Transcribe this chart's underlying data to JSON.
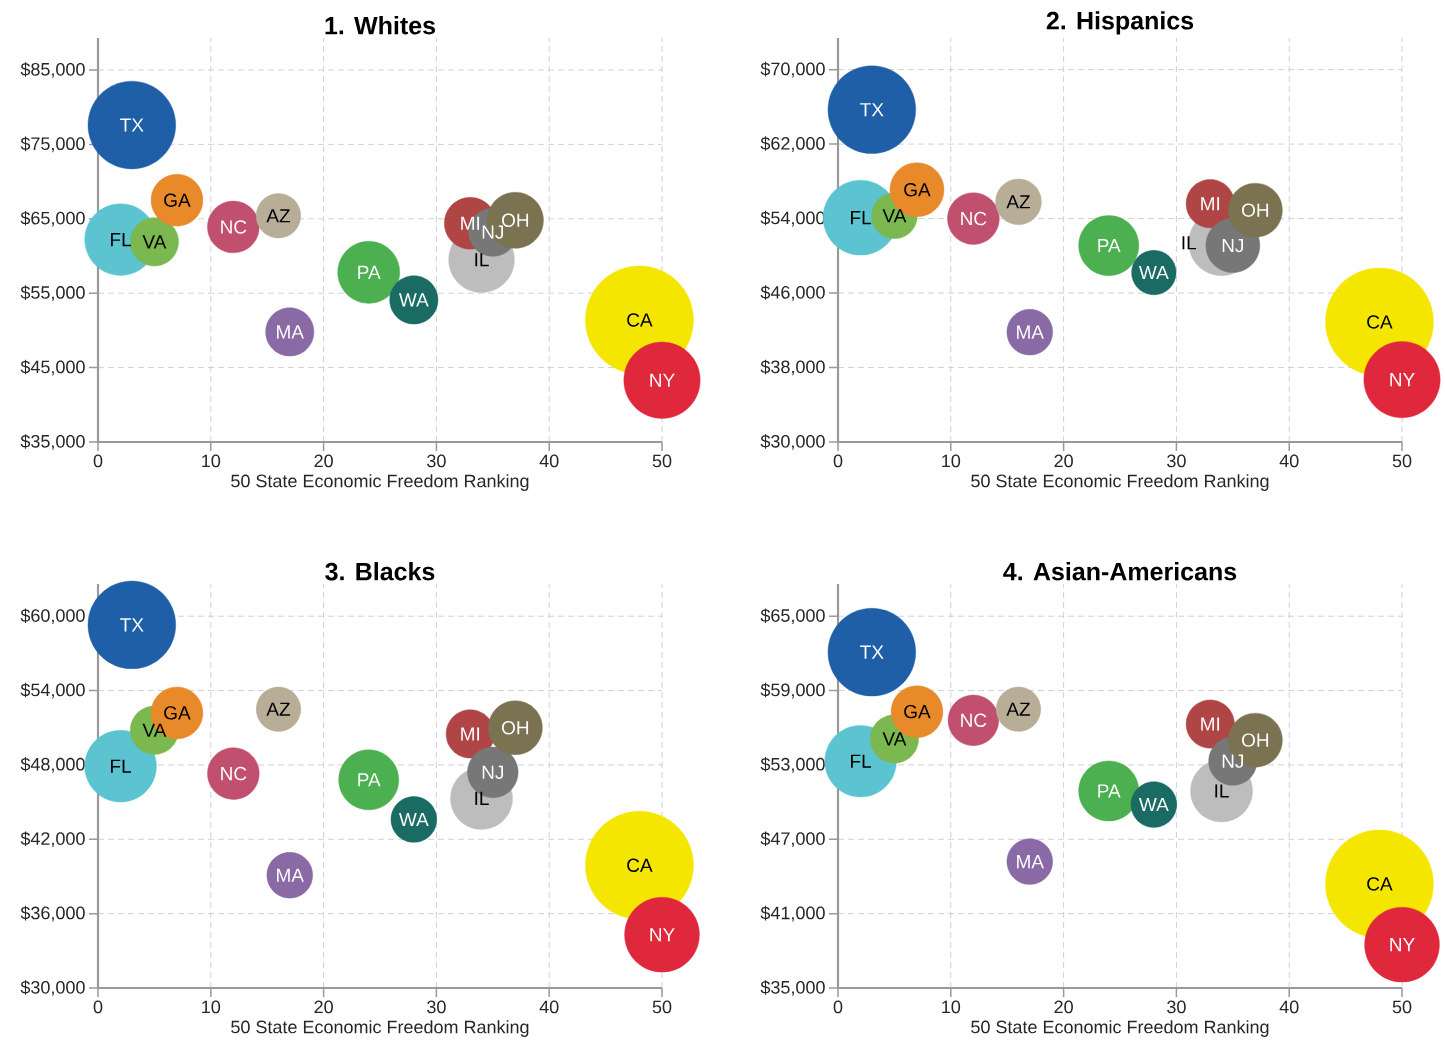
{
  "chart_data": [
    {
      "type": "bubble",
      "title": "1. Whites",
      "xlabel": "50 State Economic Freedom Ranking",
      "xlim": [
        0,
        50
      ],
      "ylim": [
        35000,
        89300
      ],
      "xticks": [
        0,
        10,
        20,
        30,
        40,
        50
      ],
      "yticks": [
        {
          "value": 35000,
          "label": "$35,000"
        },
        {
          "value": 45000,
          "label": "$45,000"
        },
        {
          "value": 55000,
          "label": "$55,000"
        },
        {
          "value": 65000,
          "label": "$65,000"
        },
        {
          "value": 75000,
          "label": "$75,000"
        },
        {
          "value": 85000,
          "label": "$85,000"
        }
      ],
      "grid": true,
      "marker": "circle",
      "x": [
        3,
        2,
        5,
        7,
        12,
        16,
        17,
        24,
        28,
        34,
        33,
        35,
        37,
        48,
        50
      ],
      "values": [
        77600,
        62200,
        61900,
        67500,
        63900,
        65400,
        49800,
        57800,
        54100,
        59500,
        64400,
        63200,
        64800,
        51400,
        43300
      ],
      "sizes": [
        0.66,
        0.44,
        0.2,
        0.23,
        0.23,
        0.17,
        0.2,
        0.33,
        0.2,
        0.37,
        0.23,
        0.2,
        0.27,
        1,
        0.5
      ],
      "colors": [
        "#1f5fa8",
        "#5bc4d0",
        "#7bb850",
        "#e8892a",
        "#c0506e",
        "#b8ae98",
        "#8a6aa5",
        "#4caf50",
        "#1a6b63",
        "#bdbdbd",
        "#b04545",
        "#777777",
        "#7a7250",
        "#f5e600",
        "#e0283c"
      ],
      "annotations": [
        {
          "text": "TX",
          "x": 3,
          "y": 77600
        },
        {
          "text": "FL",
          "x": 2,
          "y": 62200
        },
        {
          "text": "VA",
          "x": 5,
          "y": 61900
        },
        {
          "text": "GA",
          "x": 7,
          "y": 67500
        },
        {
          "text": "NC",
          "x": 12,
          "y": 63900
        },
        {
          "text": "AZ",
          "x": 16,
          "y": 65400
        },
        {
          "text": "MA",
          "x": 17,
          "y": 49800
        },
        {
          "text": "PA",
          "x": 24,
          "y": 57800
        },
        {
          "text": "WA",
          "x": 28,
          "y": 54100
        },
        {
          "text": "IL",
          "x": 34,
          "y": 59500
        },
        {
          "text": "MI",
          "x": 33,
          "y": 64400
        },
        {
          "text": "NJ",
          "x": 35,
          "y": 63200
        },
        {
          "text": "OH",
          "x": 37,
          "y": 64800
        },
        {
          "text": "CA",
          "x": 48,
          "y": 51400
        },
        {
          "text": "NY",
          "x": 50,
          "y": 43300
        }
      ]
    },
    {
      "type": "bubble",
      "title": "2. Hispanics",
      "xlabel": "50 State Economic Freedom Ranking",
      "xlim": [
        0,
        50
      ],
      "ylim": [
        30000,
        73400
      ],
      "xticks": [
        0,
        10,
        20,
        30,
        40,
        50
      ],
      "yticks": [
        {
          "value": 30000,
          "label": "$30,000"
        },
        {
          "value": 38000,
          "label": "$38,000"
        },
        {
          "value": 46000,
          "label": "$46,000"
        },
        {
          "value": 54000,
          "label": "$54,000"
        },
        {
          "value": 62000,
          "label": "$62,000"
        },
        {
          "value": 70000,
          "label": "$70,000"
        }
      ],
      "grid": true,
      "marker": "circle",
      "x": [
        3,
        2,
        5,
        7,
        12,
        16,
        17,
        24,
        28,
        34,
        33,
        35,
        37,
        48,
        50
      ],
      "values": [
        65700,
        54100,
        54300,
        57100,
        54000,
        55800,
        41800,
        51100,
        48200,
        51400,
        55600,
        51100,
        54900,
        42900,
        36700
      ],
      "sizes": [
        0.66,
        0.48,
        0.18,
        0.25,
        0.23,
        0.18,
        0.18,
        0.31,
        0.17,
        0.37,
        0.2,
        0.25,
        0.25,
        1,
        0.5
      ],
      "colors": [
        "#1f5fa8",
        "#5bc4d0",
        "#7bb850",
        "#e8892a",
        "#c0506e",
        "#b8ae98",
        "#8a6aa5",
        "#4caf50",
        "#1a6b63",
        "#bdbdbd",
        "#b04545",
        "#777777",
        "#7a7250",
        "#f5e600",
        "#e0283c"
      ],
      "annotations": [
        {
          "text": "TX",
          "x": 3,
          "y": 65700
        },
        {
          "text": "FL",
          "x": 2,
          "y": 54100
        },
        {
          "text": "VA",
          "x": 5,
          "y": 54300
        },
        {
          "text": "GA",
          "x": 7,
          "y": 57100
        },
        {
          "text": "NC",
          "x": 12,
          "y": 54000
        },
        {
          "text": "AZ",
          "x": 16,
          "y": 55800
        },
        {
          "text": "MA",
          "x": 17,
          "y": 41800
        },
        {
          "text": "PA",
          "x": 24,
          "y": 51100
        },
        {
          "text": "WA",
          "x": 28,
          "y": 48200
        },
        {
          "text": "IL",
          "x": 34,
          "y": 51400
        },
        {
          "text": "MI",
          "x": 33,
          "y": 55600
        },
        {
          "text": "NJ",
          "x": 35,
          "y": 51100
        },
        {
          "text": "OH",
          "x": 37,
          "y": 54900
        },
        {
          "text": "CA",
          "x": 48,
          "y": 42900
        },
        {
          "text": "NY",
          "x": 50,
          "y": 36700
        }
      ]
    },
    {
      "type": "bubble",
      "title": "3. Blacks",
      "xlabel": "50 State Economic Freedom Ranking",
      "xlim": [
        0,
        50
      ],
      "ylim": [
        30000,
        62600
      ],
      "xticks": [
        0,
        10,
        20,
        30,
        40,
        50
      ],
      "yticks": [
        {
          "value": 30000,
          "label": "$30,000"
        },
        {
          "value": 36000,
          "label": "$36,000"
        },
        {
          "value": 42000,
          "label": "$42,000"
        },
        {
          "value": 48000,
          "label": "$48,000"
        },
        {
          "value": 54000,
          "label": "$54,000"
        },
        {
          "value": 60000,
          "label": "$60,000"
        }
      ],
      "grid": true,
      "marker": "circle",
      "x": [
        3,
        2,
        5,
        7,
        12,
        16,
        17,
        24,
        28,
        34,
        33,
        35,
        37,
        48,
        50
      ],
      "values": [
        59300,
        47900,
        50800,
        52200,
        47300,
        52500,
        39100,
        46800,
        43600,
        45300,
        50500,
        47400,
        51000,
        39900,
        34300
      ],
      "sizes": [
        0.66,
        0.44,
        0.2,
        0.23,
        0.23,
        0.17,
        0.18,
        0.31,
        0.18,
        0.33,
        0.2,
        0.22,
        0.25,
        1,
        0.48
      ],
      "colors": [
        "#1f5fa8",
        "#5bc4d0",
        "#7bb850",
        "#e8892a",
        "#c0506e",
        "#b8ae98",
        "#8a6aa5",
        "#4caf50",
        "#1a6b63",
        "#bdbdbd",
        "#b04545",
        "#777777",
        "#7a7250",
        "#f5e600",
        "#e0283c"
      ],
      "annotations": [
        {
          "text": "TX",
          "x": 3,
          "y": 59300
        },
        {
          "text": "FL",
          "x": 2,
          "y": 47900
        },
        {
          "text": "VA",
          "x": 5,
          "y": 50800
        },
        {
          "text": "GA",
          "x": 7,
          "y": 52200
        },
        {
          "text": "NC",
          "x": 12,
          "y": 47300
        },
        {
          "text": "AZ",
          "x": 16,
          "y": 52500
        },
        {
          "text": "MA",
          "x": 17,
          "y": 39100
        },
        {
          "text": "PA",
          "x": 24,
          "y": 46800
        },
        {
          "text": "WA",
          "x": 28,
          "y": 43600
        },
        {
          "text": "IL",
          "x": 34,
          "y": 45300
        },
        {
          "text": "MI",
          "x": 33,
          "y": 50500
        },
        {
          "text": "NJ",
          "x": 35,
          "y": 47400
        },
        {
          "text": "OH",
          "x": 37,
          "y": 51000
        },
        {
          "text": "CA",
          "x": 48,
          "y": 39900
        },
        {
          "text": "NY",
          "x": 50,
          "y": 34300
        }
      ]
    },
    {
      "type": "bubble",
      "title": "4. Asian-Americans",
      "xlabel": "50 State Economic Freedom Ranking",
      "xlim": [
        0,
        50
      ],
      "ylim": [
        35000,
        67600
      ],
      "xticks": [
        0,
        10,
        20,
        30,
        40,
        50
      ],
      "yticks": [
        {
          "value": 35000,
          "label": "$35,000"
        },
        {
          "value": 41000,
          "label": "$41,000"
        },
        {
          "value": 47000,
          "label": "$47,000"
        },
        {
          "value": 53000,
          "label": "$53,000"
        },
        {
          "value": 59000,
          "label": "$59,000"
        },
        {
          "value": 65000,
          "label": "$65,000"
        }
      ],
      "grid": true,
      "marker": "circle",
      "x": [
        3,
        2,
        5,
        7,
        12,
        16,
        17,
        24,
        28,
        34,
        33,
        35,
        37,
        48,
        50
      ],
      "values": [
        62100,
        53300,
        55100,
        57300,
        56600,
        57500,
        45200,
        50900,
        49800,
        50900,
        56300,
        53300,
        55000,
        43400,
        38500
      ],
      "sizes": [
        0.66,
        0.44,
        0.2,
        0.23,
        0.22,
        0.17,
        0.18,
        0.31,
        0.18,
        0.33,
        0.2,
        0.2,
        0.25,
        1,
        0.48
      ],
      "colors": [
        "#1f5fa8",
        "#5bc4d0",
        "#7bb850",
        "#e8892a",
        "#c0506e",
        "#b8ae98",
        "#8a6aa5",
        "#4caf50",
        "#1a6b63",
        "#bdbdbd",
        "#b04545",
        "#777777",
        "#7a7250",
        "#f5e600",
        "#e0283c"
      ],
      "annotations": [
        {
          "text": "TX",
          "x": 3,
          "y": 62100
        },
        {
          "text": "FL",
          "x": 2,
          "y": 53300
        },
        {
          "text": "VA",
          "x": 5,
          "y": 55100
        },
        {
          "text": "GA",
          "x": 7,
          "y": 57300
        },
        {
          "text": "NC",
          "x": 12,
          "y": 56600
        },
        {
          "text": "AZ",
          "x": 16,
          "y": 57500
        },
        {
          "text": "MA",
          "x": 17,
          "y": 45200
        },
        {
          "text": "PA",
          "x": 24,
          "y": 50900
        },
        {
          "text": "WA",
          "x": 28,
          "y": 49800
        },
        {
          "text": "IL",
          "x": 34,
          "y": 50900
        },
        {
          "text": "MI",
          "x": 33,
          "y": 56300
        },
        {
          "text": "NJ",
          "x": 35,
          "y": 53300
        },
        {
          "text": "OH",
          "x": 37,
          "y": 55000
        },
        {
          "text": "CA",
          "x": 48,
          "y": 43400
        },
        {
          "text": "NY",
          "x": 50,
          "y": 38500
        }
      ]
    }
  ]
}
